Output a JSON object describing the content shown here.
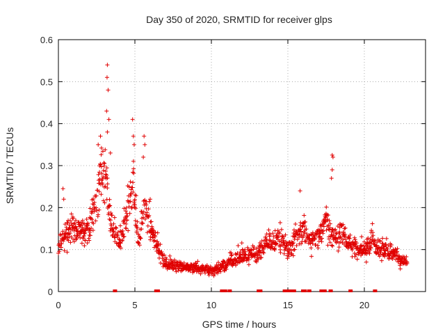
{
  "chart_data": {
    "type": "scatter",
    "title": "Day 350 of 2020, SRMTID for receiver glps",
    "xlabel": "GPS time / hours",
    "ylabel": "SRMTID / TECUs",
    "xlim": [
      0,
      24
    ],
    "ylim": [
      0,
      0.6
    ],
    "xticks": [
      "0",
      "5",
      "10",
      "15",
      "20"
    ],
    "xtick_values": [
      0,
      5,
      10,
      15,
      20
    ],
    "yticks": [
      "0",
      "0.1",
      "0.2",
      "0.3",
      "0.4",
      "0.5",
      "0.6"
    ],
    "ytick_values": [
      0,
      0.1,
      0.2,
      0.3,
      0.4,
      0.5,
      0.6
    ],
    "grid": true,
    "marker": "+",
    "color": "#e00000",
    "trend": [
      [
        0.0,
        0.11
      ],
      [
        0.5,
        0.14
      ],
      [
        1.0,
        0.15
      ],
      [
        1.5,
        0.14
      ],
      [
        2.0,
        0.15
      ],
      [
        2.5,
        0.22
      ],
      [
        2.8,
        0.29
      ],
      [
        3.1,
        0.27
      ],
      [
        3.5,
        0.15
      ],
      [
        4.0,
        0.12
      ],
      [
        4.5,
        0.18
      ],
      [
        4.9,
        0.26
      ],
      [
        5.2,
        0.12
      ],
      [
        5.6,
        0.2
      ],
      [
        6.0,
        0.16
      ],
      [
        6.5,
        0.11
      ],
      [
        7.0,
        0.065
      ],
      [
        8.0,
        0.06
      ],
      [
        9.0,
        0.055
      ],
      [
        10.0,
        0.05
      ],
      [
        11.0,
        0.065
      ],
      [
        12.0,
        0.085
      ],
      [
        13.0,
        0.09
      ],
      [
        13.5,
        0.11
      ],
      [
        14.0,
        0.12
      ],
      [
        14.5,
        0.13
      ],
      [
        15.0,
        0.1
      ],
      [
        15.5,
        0.13
      ],
      [
        16.0,
        0.15
      ],
      [
        16.5,
        0.12
      ],
      [
        17.0,
        0.13
      ],
      [
        17.5,
        0.17
      ],
      [
        18.0,
        0.13
      ],
      [
        18.5,
        0.14
      ],
      [
        19.0,
        0.12
      ],
      [
        19.5,
        0.1
      ],
      [
        20.0,
        0.1
      ],
      [
        20.5,
        0.12
      ],
      [
        21.0,
        0.1
      ],
      [
        21.5,
        0.1
      ],
      [
        22.0,
        0.09
      ],
      [
        22.5,
        0.07
      ],
      [
        22.8,
        0.07
      ]
    ],
    "spikes": [
      {
        "x": 3.2,
        "y": 0.54
      },
      {
        "x": 3.18,
        "y": 0.51
      },
      {
        "x": 3.25,
        "y": 0.48
      },
      {
        "x": 3.15,
        "y": 0.43
      },
      {
        "x": 3.3,
        "y": 0.41
      },
      {
        "x": 3.2,
        "y": 0.38
      },
      {
        "x": 4.85,
        "y": 0.41
      },
      {
        "x": 4.9,
        "y": 0.37
      },
      {
        "x": 4.95,
        "y": 0.35
      },
      {
        "x": 5.6,
        "y": 0.37
      },
      {
        "x": 5.65,
        "y": 0.35
      },
      {
        "x": 5.55,
        "y": 0.32
      },
      {
        "x": 2.6,
        "y": 0.35
      },
      {
        "x": 2.75,
        "y": 0.37
      },
      {
        "x": 3.4,
        "y": 0.33
      },
      {
        "x": 17.9,
        "y": 0.325
      },
      {
        "x": 17.95,
        "y": 0.32
      },
      {
        "x": 17.9,
        "y": 0.29
      },
      {
        "x": 17.85,
        "y": 0.27
      },
      {
        "x": 15.8,
        "y": 0.24
      },
      {
        "x": 0.3,
        "y": 0.245
      },
      {
        "x": 0.35,
        "y": 0.22
      },
      {
        "x": 6.0,
        "y": 0.22
      }
    ],
    "zero_markers": [
      3.7,
      6.4,
      6.5,
      10.7,
      10.9,
      11.2,
      13.1,
      13.2,
      14.8,
      14.9,
      15.0,
      15.2,
      15.4,
      16.0,
      16.1,
      16.4,
      17.2,
      17.4,
      17.8,
      19.1,
      20.7
    ]
  }
}
